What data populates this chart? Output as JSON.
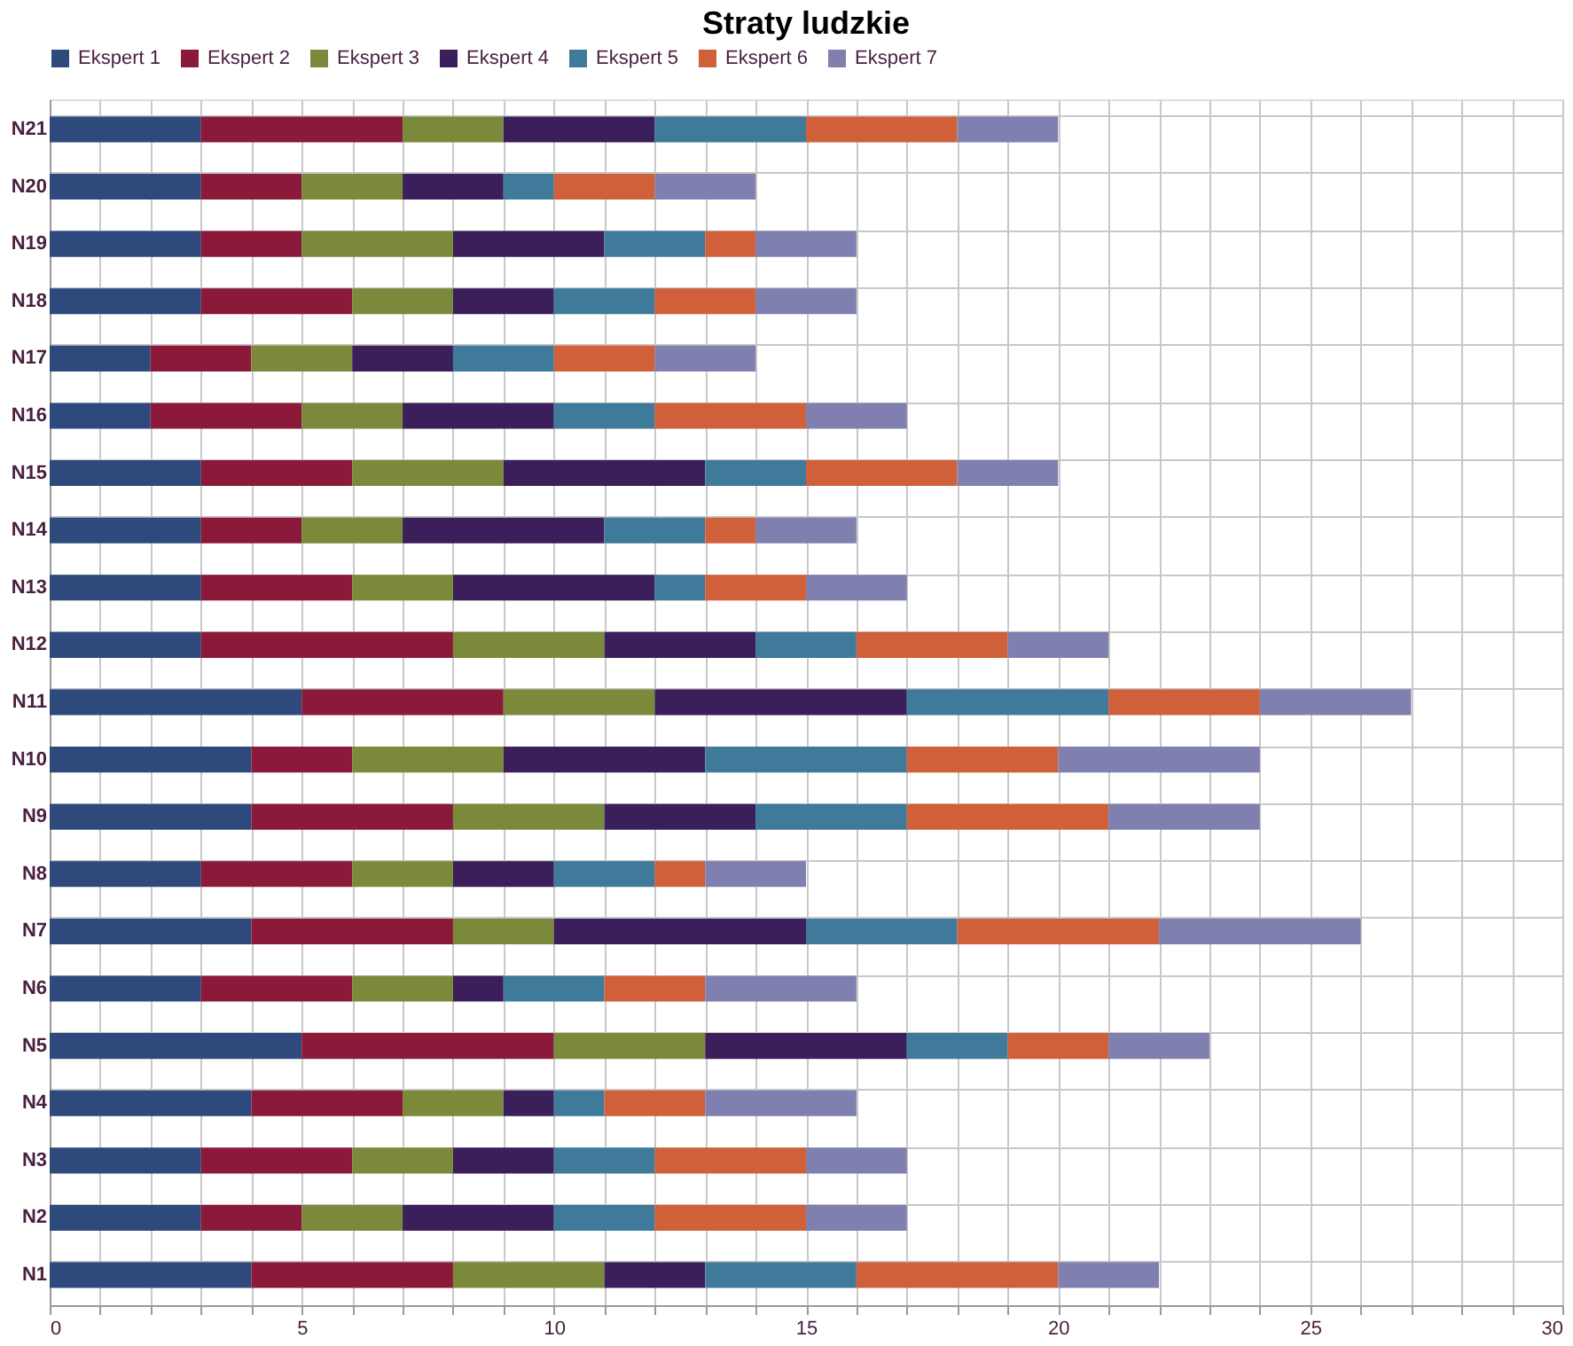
{
  "chart_data": {
    "type": "bar",
    "orientation": "horizontal",
    "stacked": true,
    "title": "Straty ludzkie",
    "categories": [
      "N21",
      "N20",
      "N19",
      "N18",
      "N17",
      "N16",
      "N15",
      "N14",
      "N13",
      "N12",
      "N11",
      "N10",
      "N9",
      "N8",
      "N7",
      "N6",
      "N5",
      "N4",
      "N3",
      "N2",
      "N1"
    ],
    "series": [
      {
        "name": "Ekspert 1",
        "color": "#2e4a7d",
        "values": [
          3,
          3,
          3,
          3,
          2,
          2,
          3,
          3,
          3,
          3,
          5,
          4,
          4,
          3,
          4,
          3,
          5,
          4,
          3,
          3,
          4
        ]
      },
      {
        "name": "Ekspert 2",
        "color": "#8b1a3a",
        "values": [
          4,
          2,
          2,
          3,
          2,
          3,
          3,
          2,
          3,
          5,
          4,
          2,
          4,
          3,
          4,
          3,
          5,
          3,
          3,
          2,
          4
        ]
      },
      {
        "name": "Ekspert 3",
        "color": "#7a8a3a",
        "values": [
          2,
          2,
          3,
          2,
          2,
          2,
          3,
          2,
          2,
          3,
          3,
          3,
          3,
          2,
          2,
          2,
          3,
          2,
          2,
          2,
          3
        ]
      },
      {
        "name": "Ekspert 4",
        "color": "#3a1f5a",
        "values": [
          3,
          2,
          3,
          2,
          2,
          3,
          4,
          4,
          4,
          3,
          5,
          4,
          3,
          2,
          5,
          1,
          4,
          1,
          2,
          3,
          2
        ]
      },
      {
        "name": "Ekspert 5",
        "color": "#3f7a9a",
        "values": [
          3,
          1,
          2,
          2,
          2,
          2,
          2,
          2,
          1,
          2,
          4,
          4,
          3,
          2,
          3,
          2,
          2,
          1,
          2,
          2,
          3
        ]
      },
      {
        "name": "Ekspert 6",
        "color": "#d0603a",
        "values": [
          3,
          2,
          1,
          2,
          2,
          3,
          3,
          1,
          2,
          3,
          3,
          3,
          4,
          1,
          4,
          2,
          2,
          2,
          3,
          3,
          4
        ]
      },
      {
        "name": "Ekspert 7",
        "color": "#8080b0",
        "values": [
          2,
          2,
          2,
          2,
          2,
          2,
          2,
          2,
          2,
          2,
          3,
          4,
          3,
          2,
          4,
          3,
          2,
          3,
          2,
          2,
          2
        ]
      }
    ],
    "xlim": [
      0,
      30
    ],
    "xticks": [
      0,
      {
        "value": 1,
        "label": null
      },
      {
        "value": 2,
        "label": null
      },
      {
        "value": 3,
        "label": null
      },
      {
        "value": 4,
        "label": null
      },
      5,
      {
        "value": 6,
        "label": null
      },
      {
        "value": 7,
        "label": null
      },
      {
        "value": 8,
        "label": null
      },
      {
        "value": 9,
        "label": null
      },
      10,
      {
        "value": 11,
        "label": null
      },
      {
        "value": 12,
        "label": null
      },
      {
        "value": 13,
        "label": null
      },
      {
        "value": 14,
        "label": null
      },
      15,
      {
        "value": 16,
        "label": null
      },
      {
        "value": 17,
        "label": null
      },
      {
        "value": 18,
        "label": null
      },
      {
        "value": 19,
        "label": null
      },
      20,
      {
        "value": 21,
        "label": null
      },
      {
        "value": 22,
        "label": null
      },
      {
        "value": 23,
        "label": null
      },
      {
        "value": 24,
        "label": null
      },
      25,
      {
        "value": 26,
        "label": null
      },
      {
        "value": 27,
        "label": null
      },
      {
        "value": 28,
        "label": null
      },
      {
        "value": 29,
        "label": null
      },
      30
    ],
    "grid": true,
    "legend": "top"
  }
}
